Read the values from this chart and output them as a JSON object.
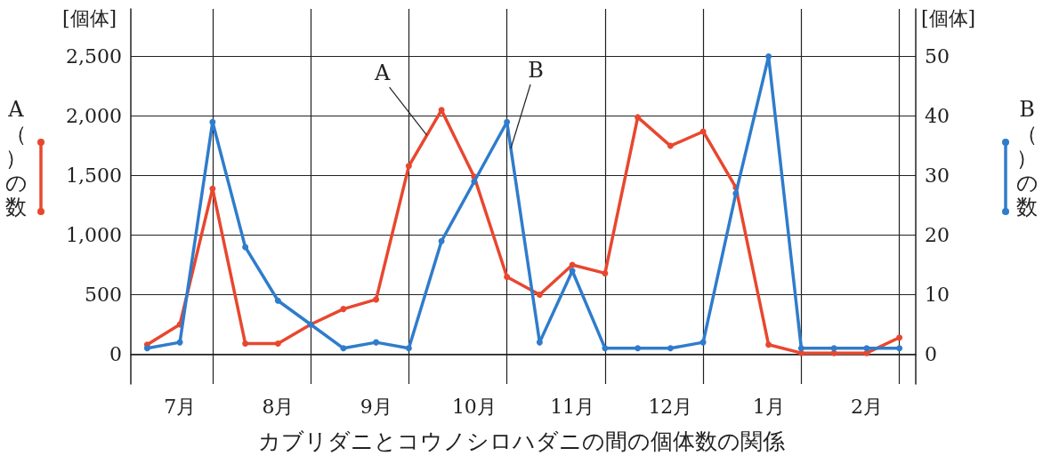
{
  "chart_data": {
    "type": "line",
    "title": "カブリダニとコウノシロハダニの間の個体数の関係",
    "ylabel": "A（）の数",
    "y2label": "B（）の数",
    "annotations": [
      "[個体]",
      "[個体]"
    ],
    "categories": [
      null,
      "7月",
      null,
      null,
      "8月",
      null,
      null,
      "9月",
      null,
      null,
      "10月",
      null,
      null,
      "11月",
      null,
      null,
      "12月",
      null,
      null,
      "1月",
      null,
      null,
      "2月",
      null
    ],
    "ylim": [
      -250,
      2900
    ],
    "yticks": [
      {
        "value": 0,
        "label": "0"
      },
      {
        "value": 500,
        "label": "500"
      },
      {
        "value": 1000,
        "label": "1,000"
      },
      {
        "value": 1500,
        "label": "1,500"
      },
      {
        "value": 2000,
        "label": "2,000"
      },
      {
        "value": 2500,
        "label": "2,500"
      }
    ],
    "y2lim": [
      -5,
      58
    ],
    "y2ticks": [
      0,
      10,
      20,
      30,
      40,
      50
    ],
    "grid": true,
    "marker": "circle",
    "line_style": "solid",
    "legend": false,
    "series": [
      {
        "name": "A",
        "color": "#e8472f",
        "values": [
          80,
          250,
          1390,
          90,
          90,
          250,
          380,
          460,
          1580,
          2050,
          1490,
          650,
          500,
          750,
          680,
          1990,
          1750,
          1870,
          1400,
          80,
          10,
          10,
          10,
          140
        ]
      },
      {
        "name": "B",
        "color": "#2f7ccc",
        "axis": "y2",
        "values": [
          1,
          2,
          39,
          18,
          9,
          5,
          1,
          2,
          1,
          19,
          29,
          39,
          2,
          14,
          1,
          1,
          1,
          2,
          27,
          50,
          1,
          1,
          1,
          1
        ]
      }
    ]
  }
}
